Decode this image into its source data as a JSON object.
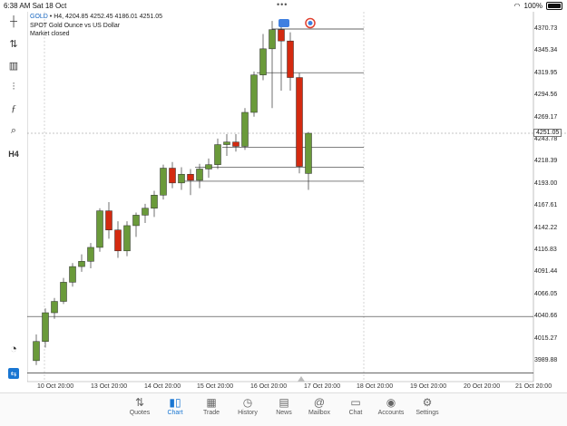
{
  "status_bar": {
    "time": "6:38 AM",
    "date": "Sat 18 Oct",
    "battery": "100%"
  },
  "chart_info": {
    "symbol": "GOLD",
    "timeframe_ohlc": "• H4, 4204.85 4252.45 4186.01 4251.05",
    "description": "SPOT Gold Ounce vs US Dollar",
    "market_status": "Market closed"
  },
  "toolbar": {
    "timeframe": "H4",
    "tools": [
      "crosshair-icon",
      "indicators-icon",
      "chart-type-icon",
      "bar-settings-icon",
      "function-icon",
      "objects-icon"
    ]
  },
  "price_axis": {
    "labels": [
      "4370.73",
      "4345.34",
      "4319.95",
      "4294.56",
      "4269.17",
      "4243.78",
      "4218.39",
      "4193.00",
      "4167.61",
      "4142.22",
      "4116.83",
      "4091.44",
      "4066.05",
      "4040.66",
      "4015.27",
      "3989.88"
    ],
    "current_price": "4251.05"
  },
  "time_axis": {
    "labels": [
      "10 Oct 20:00",
      "13 Oct 20:00",
      "14 Oct 20:00",
      "15 Oct 20:00",
      "16 Oct 20:00",
      "17 Oct 20:00",
      "18 Oct 20:00",
      "19 Oct 20:00",
      "20 Oct 20:00",
      "21 Oct 20:00"
    ]
  },
  "colors": {
    "bull": "#6a9a3a",
    "bear": "#d42a10",
    "accent": "#1976d2"
  },
  "chart_data": {
    "type": "candlestick",
    "ylim": [
      3985,
      4380
    ],
    "candles": [
      {
        "o": 3990,
        "h": 4020,
        "l": 3985,
        "c": 4012
      },
      {
        "o": 4012,
        "h": 4050,
        "l": 4005,
        "c": 4045
      },
      {
        "o": 4045,
        "h": 4062,
        "l": 4038,
        "c": 4058
      },
      {
        "o": 4058,
        "h": 4085,
        "l": 4055,
        "c": 4080
      },
      {
        "o": 4080,
        "h": 4102,
        "l": 4075,
        "c": 4098
      },
      {
        "o": 4098,
        "h": 4112,
        "l": 4092,
        "c": 4104
      },
      {
        "o": 4104,
        "h": 4125,
        "l": 4096,
        "c": 4120
      },
      {
        "o": 4120,
        "h": 4165,
        "l": 4115,
        "c": 4162
      },
      {
        "o": 4162,
        "h": 4172,
        "l": 4130,
        "c": 4140
      },
      {
        "o": 4140,
        "h": 4150,
        "l": 4108,
        "c": 4116
      },
      {
        "o": 4116,
        "h": 4150,
        "l": 4110,
        "c": 4145
      },
      {
        "o": 4145,
        "h": 4160,
        "l": 4132,
        "c": 4157
      },
      {
        "o": 4157,
        "h": 4170,
        "l": 4148,
        "c": 4165
      },
      {
        "o": 4165,
        "h": 4185,
        "l": 4155,
        "c": 4180
      },
      {
        "o": 4180,
        "h": 4215,
        "l": 4175,
        "c": 4211
      },
      {
        "o": 4211,
        "h": 4218,
        "l": 4188,
        "c": 4194
      },
      {
        "o": 4194,
        "h": 4212,
        "l": 4186,
        "c": 4204
      },
      {
        "o": 4204,
        "h": 4210,
        "l": 4180,
        "c": 4197
      },
      {
        "o": 4197,
        "h": 4216,
        "l": 4188,
        "c": 4210
      },
      {
        "o": 4210,
        "h": 4222,
        "l": 4200,
        "c": 4215
      },
      {
        "o": 4215,
        "h": 4245,
        "l": 4210,
        "c": 4238
      },
      {
        "o": 4238,
        "h": 4250,
        "l": 4225,
        "c": 4241
      },
      {
        "o": 4241,
        "h": 4250,
        "l": 4230,
        "c": 4236
      },
      {
        "o": 4236,
        "h": 4280,
        "l": 4232,
        "c": 4275
      },
      {
        "o": 4275,
        "h": 4322,
        "l": 4270,
        "c": 4318
      },
      {
        "o": 4318,
        "h": 4365,
        "l": 4312,
        "c": 4348
      },
      {
        "o": 4348,
        "h": 4380,
        "l": 4280,
        "c": 4370
      },
      {
        "o": 4370,
        "h": 4378,
        "l": 4300,
        "c": 4357
      },
      {
        "o": 4357,
        "h": 4367,
        "l": 4300,
        "c": 4315
      },
      {
        "o": 4315,
        "h": 4320,
        "l": 4205,
        "c": 4213
      },
      {
        "o": 4204.85,
        "h": 4252.45,
        "l": 4186.01,
        "c": 4251.05
      }
    ],
    "levels": [
      4370.73,
      4320.5,
      4235,
      4212,
      4196,
      4040.66,
      3976
    ]
  },
  "nav": [
    {
      "label": "Quotes",
      "icon": "quotes-icon"
    },
    {
      "label": "Chart",
      "icon": "chart-icon"
    },
    {
      "label": "Trade",
      "icon": "trade-icon"
    },
    {
      "label": "History",
      "icon": "history-icon"
    },
    {
      "label": "News",
      "icon": "news-icon"
    },
    {
      "label": "Mailbox",
      "icon": "mailbox-icon"
    },
    {
      "label": "Chat",
      "icon": "chat-icon"
    },
    {
      "label": "Accounts",
      "icon": "accounts-icon"
    },
    {
      "label": "Settings",
      "icon": "settings-icon"
    }
  ]
}
